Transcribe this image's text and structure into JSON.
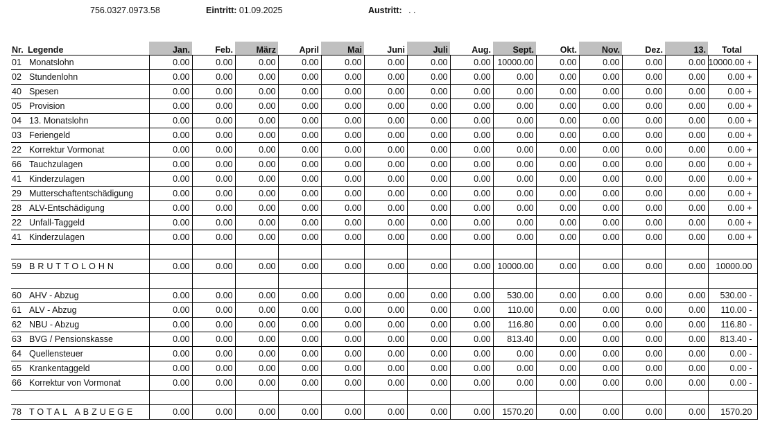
{
  "header": {
    "ahv_number": "756.0327.0973.58",
    "eintritt_label": "Eintritt:",
    "eintritt_value": "01.09.2025",
    "austritt_label": "Austritt:",
    "austritt_value": ". ."
  },
  "columns": {
    "nr": "Nr.",
    "legend": "Legende",
    "months": [
      "Jan.",
      "Feb.",
      "März",
      "April",
      "Mai",
      "Juni",
      "Juli",
      "Aug.",
      "Sept.",
      "Okt.",
      "Nov.",
      "Dez.",
      "13."
    ],
    "total": "Total"
  },
  "rows": [
    {
      "type": "data",
      "nr": "01",
      "label": "Monatslohn",
      "values": [
        "0.00",
        "0.00",
        "0.00",
        "0.00",
        "0.00",
        "0.00",
        "0.00",
        "0.00",
        "10000.00",
        "0.00",
        "0.00",
        "0.00",
        "0.00"
      ],
      "total": "10000.00 +"
    },
    {
      "type": "data",
      "nr": "02",
      "label": "Stundenlohn",
      "values": [
        "0.00",
        "0.00",
        "0.00",
        "0.00",
        "0.00",
        "0.00",
        "0.00",
        "0.00",
        "0.00",
        "0.00",
        "0.00",
        "0.00",
        "0.00"
      ],
      "total": "0.00 +"
    },
    {
      "type": "data",
      "nr": "40",
      "label": "Spesen",
      "values": [
        "0.00",
        "0.00",
        "0.00",
        "0.00",
        "0.00",
        "0.00",
        "0.00",
        "0.00",
        "0.00",
        "0.00",
        "0.00",
        "0.00",
        "0.00"
      ],
      "total": "0.00 +"
    },
    {
      "type": "data",
      "nr": "05",
      "label": "Provision",
      "values": [
        "0.00",
        "0.00",
        "0.00",
        "0.00",
        "0.00",
        "0.00",
        "0.00",
        "0.00",
        "0.00",
        "0.00",
        "0.00",
        "0.00",
        "0.00"
      ],
      "total": "0.00 +"
    },
    {
      "type": "data",
      "nr": "04",
      "label": "13. Monatslohn",
      "values": [
        "0.00",
        "0.00",
        "0.00",
        "0.00",
        "0.00",
        "0.00",
        "0.00",
        "0.00",
        "0.00",
        "0.00",
        "0.00",
        "0.00",
        "0.00"
      ],
      "total": "0.00 +"
    },
    {
      "type": "data",
      "nr": "03",
      "label": "Feriengeld",
      "values": [
        "0.00",
        "0.00",
        "0.00",
        "0.00",
        "0.00",
        "0.00",
        "0.00",
        "0.00",
        "0.00",
        "0.00",
        "0.00",
        "0.00",
        "0.00"
      ],
      "total": "0.00 +"
    },
    {
      "type": "data",
      "nr": "22",
      "label": "Korrektur Vormonat",
      "values": [
        "0.00",
        "0.00",
        "0.00",
        "0.00",
        "0.00",
        "0.00",
        "0.00",
        "0.00",
        "0.00",
        "0.00",
        "0.00",
        "0.00",
        "0.00"
      ],
      "total": "0.00 +"
    },
    {
      "type": "data",
      "nr": "66",
      "label": "Tauchzulagen",
      "values": [
        "0.00",
        "0.00",
        "0.00",
        "0.00",
        "0.00",
        "0.00",
        "0.00",
        "0.00",
        "0.00",
        "0.00",
        "0.00",
        "0.00",
        "0.00"
      ],
      "total": "0.00 +"
    },
    {
      "type": "data",
      "nr": "41",
      "label": "Kinderzulagen",
      "values": [
        "0.00",
        "0.00",
        "0.00",
        "0.00",
        "0.00",
        "0.00",
        "0.00",
        "0.00",
        "0.00",
        "0.00",
        "0.00",
        "0.00",
        "0.00"
      ],
      "total": "0.00 +"
    },
    {
      "type": "data",
      "nr": "29",
      "label": "Mutterschaftentschädigung",
      "values": [
        "0.00",
        "0.00",
        "0.00",
        "0.00",
        "0.00",
        "0.00",
        "0.00",
        "0.00",
        "0.00",
        "0.00",
        "0.00",
        "0.00",
        "0.00"
      ],
      "total": "0.00 +"
    },
    {
      "type": "data",
      "nr": "28",
      "label": "ALV-Entschädigung",
      "values": [
        "0.00",
        "0.00",
        "0.00",
        "0.00",
        "0.00",
        "0.00",
        "0.00",
        "0.00",
        "0.00",
        "0.00",
        "0.00",
        "0.00",
        "0.00"
      ],
      "total": "0.00 +"
    },
    {
      "type": "data",
      "nr": "22",
      "label": "Unfall-Taggeld",
      "values": [
        "0.00",
        "0.00",
        "0.00",
        "0.00",
        "0.00",
        "0.00",
        "0.00",
        "0.00",
        "0.00",
        "0.00",
        "0.00",
        "0.00",
        "0.00"
      ],
      "total": "0.00 +"
    },
    {
      "type": "data",
      "nr": "41",
      "label": "Kinderzulagen",
      "values": [
        "0.00",
        "0.00",
        "0.00",
        "0.00",
        "0.00",
        "0.00",
        "0.00",
        "0.00",
        "0.00",
        "0.00",
        "0.00",
        "0.00",
        "0.00"
      ],
      "total": "0.00 +"
    },
    {
      "type": "blank"
    },
    {
      "type": "summary",
      "nr": "59",
      "label": "BRUTTOLOHN",
      "values": [
        "0.00",
        "0.00",
        "0.00",
        "0.00",
        "0.00",
        "0.00",
        "0.00",
        "0.00",
        "10000.00",
        "0.00",
        "0.00",
        "0.00",
        "0.00"
      ],
      "total": "10000.00"
    },
    {
      "type": "blank"
    },
    {
      "type": "data",
      "nr": "60",
      "label": "AHV - Abzug",
      "values": [
        "0.00",
        "0.00",
        "0.00",
        "0.00",
        "0.00",
        "0.00",
        "0.00",
        "0.00",
        "530.00",
        "0.00",
        "0.00",
        "0.00",
        "0.00"
      ],
      "total": "530.00 -"
    },
    {
      "type": "data",
      "nr": "61",
      "label": "ALV - Abzug",
      "values": [
        "0.00",
        "0.00",
        "0.00",
        "0.00",
        "0.00",
        "0.00",
        "0.00",
        "0.00",
        "110.00",
        "0.00",
        "0.00",
        "0.00",
        "0.00"
      ],
      "total": "110.00 -"
    },
    {
      "type": "data",
      "nr": "62",
      "label": "NBU - Abzug",
      "values": [
        "0.00",
        "0.00",
        "0.00",
        "0.00",
        "0.00",
        "0.00",
        "0.00",
        "0.00",
        "116.80",
        "0.00",
        "0.00",
        "0.00",
        "0.00"
      ],
      "total": "116.80 -"
    },
    {
      "type": "data",
      "nr": "63",
      "label": "BVG / Pensionskasse",
      "values": [
        "0.00",
        "0.00",
        "0.00",
        "0.00",
        "0.00",
        "0.00",
        "0.00",
        "0.00",
        "813.40",
        "0.00",
        "0.00",
        "0.00",
        "0.00"
      ],
      "total": "813.40 -"
    },
    {
      "type": "data",
      "nr": "64",
      "label": "Quellensteuer",
      "values": [
        "0.00",
        "0.00",
        "0.00",
        "0.00",
        "0.00",
        "0.00",
        "0.00",
        "0.00",
        "0.00",
        "0.00",
        "0.00",
        "0.00",
        "0.00"
      ],
      "total": "0.00 -"
    },
    {
      "type": "data",
      "nr": "65",
      "label": "Krankentaggeld",
      "values": [
        "0.00",
        "0.00",
        "0.00",
        "0.00",
        "0.00",
        "0.00",
        "0.00",
        "0.00",
        "0.00",
        "0.00",
        "0.00",
        "0.00",
        "0.00"
      ],
      "total": "0.00 -"
    },
    {
      "type": "data",
      "nr": "66",
      "label": "Korrektur von Vormonat",
      "values": [
        "0.00",
        "0.00",
        "0.00",
        "0.00",
        "0.00",
        "0.00",
        "0.00",
        "0.00",
        "0.00",
        "0.00",
        "0.00",
        "0.00",
        "0.00"
      ],
      "total": "0.00 -"
    },
    {
      "type": "blank"
    },
    {
      "type": "summary",
      "nr": "78",
      "label": "TOTAL ABZUEGE",
      "values": [
        "0.00",
        "0.00",
        "0.00",
        "0.00",
        "0.00",
        "0.00",
        "0.00",
        "0.00",
        "1570.20",
        "0.00",
        "0.00",
        "0.00",
        "0.00"
      ],
      "total": "1570.20"
    }
  ],
  "colors": {
    "header_shade": "#c0c0c0",
    "rule": "#000000"
  }
}
